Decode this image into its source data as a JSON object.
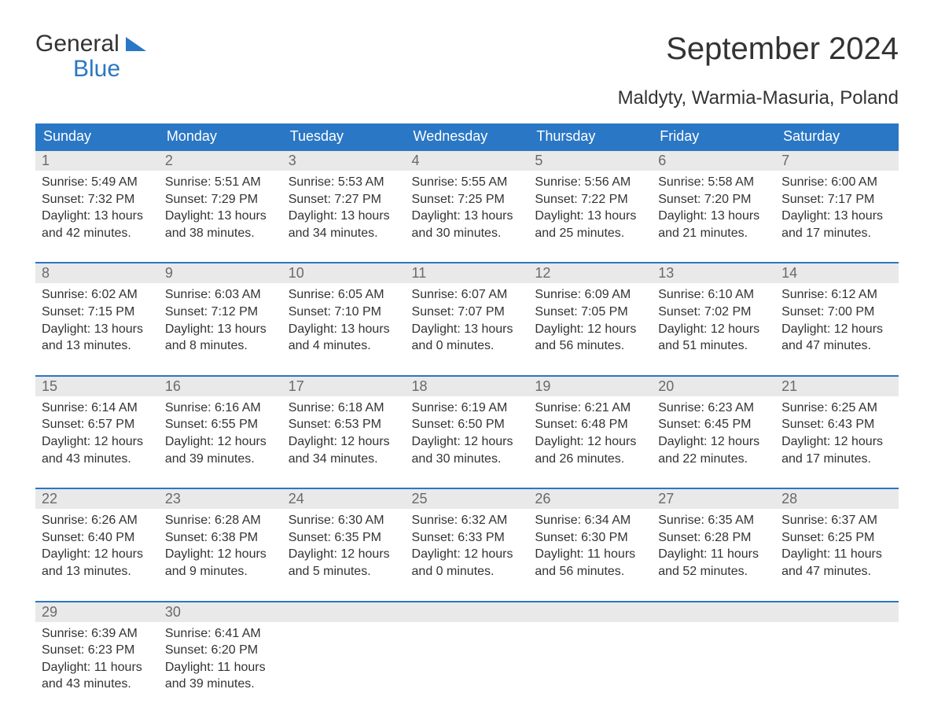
{
  "logo": {
    "line1": "General",
    "line2": "Blue"
  },
  "title": "September 2024",
  "location": "Maldyty, Warmia-Masuria, Poland",
  "colors": {
    "header_bg": "#2a77c5",
    "header_text": "#ffffff",
    "row_separator": "#2a77c5",
    "daynum_bg": "#e9e9e9",
    "daynum_text": "#6a6a6a",
    "body_text": "#333333",
    "page_bg": "#ffffff",
    "logo_accent": "#2a77c5"
  },
  "typography": {
    "title_fontsize": 40,
    "location_fontsize": 24,
    "header_fontsize": 18,
    "daynum_fontsize": 18,
    "body_fontsize": 16,
    "font_family": "Arial"
  },
  "columns": [
    "Sunday",
    "Monday",
    "Tuesday",
    "Wednesday",
    "Thursday",
    "Friday",
    "Saturday"
  ],
  "weeks": [
    [
      {
        "n": "1",
        "sr": "Sunrise: 5:49 AM",
        "ss": "Sunset: 7:32 PM",
        "d1": "Daylight: 13 hours",
        "d2": "and 42 minutes."
      },
      {
        "n": "2",
        "sr": "Sunrise: 5:51 AM",
        "ss": "Sunset: 7:29 PM",
        "d1": "Daylight: 13 hours",
        "d2": "and 38 minutes."
      },
      {
        "n": "3",
        "sr": "Sunrise: 5:53 AM",
        "ss": "Sunset: 7:27 PM",
        "d1": "Daylight: 13 hours",
        "d2": "and 34 minutes."
      },
      {
        "n": "4",
        "sr": "Sunrise: 5:55 AM",
        "ss": "Sunset: 7:25 PM",
        "d1": "Daylight: 13 hours",
        "d2": "and 30 minutes."
      },
      {
        "n": "5",
        "sr": "Sunrise: 5:56 AM",
        "ss": "Sunset: 7:22 PM",
        "d1": "Daylight: 13 hours",
        "d2": "and 25 minutes."
      },
      {
        "n": "6",
        "sr": "Sunrise: 5:58 AM",
        "ss": "Sunset: 7:20 PM",
        "d1": "Daylight: 13 hours",
        "d2": "and 21 minutes."
      },
      {
        "n": "7",
        "sr": "Sunrise: 6:00 AM",
        "ss": "Sunset: 7:17 PM",
        "d1": "Daylight: 13 hours",
        "d2": "and 17 minutes."
      }
    ],
    [
      {
        "n": "8",
        "sr": "Sunrise: 6:02 AM",
        "ss": "Sunset: 7:15 PM",
        "d1": "Daylight: 13 hours",
        "d2": "and 13 minutes."
      },
      {
        "n": "9",
        "sr": "Sunrise: 6:03 AM",
        "ss": "Sunset: 7:12 PM",
        "d1": "Daylight: 13 hours",
        "d2": "and 8 minutes."
      },
      {
        "n": "10",
        "sr": "Sunrise: 6:05 AM",
        "ss": "Sunset: 7:10 PM",
        "d1": "Daylight: 13 hours",
        "d2": "and 4 minutes."
      },
      {
        "n": "11",
        "sr": "Sunrise: 6:07 AM",
        "ss": "Sunset: 7:07 PM",
        "d1": "Daylight: 13 hours",
        "d2": "and 0 minutes."
      },
      {
        "n": "12",
        "sr": "Sunrise: 6:09 AM",
        "ss": "Sunset: 7:05 PM",
        "d1": "Daylight: 12 hours",
        "d2": "and 56 minutes."
      },
      {
        "n": "13",
        "sr": "Sunrise: 6:10 AM",
        "ss": "Sunset: 7:02 PM",
        "d1": "Daylight: 12 hours",
        "d2": "and 51 minutes."
      },
      {
        "n": "14",
        "sr": "Sunrise: 6:12 AM",
        "ss": "Sunset: 7:00 PM",
        "d1": "Daylight: 12 hours",
        "d2": "and 47 minutes."
      }
    ],
    [
      {
        "n": "15",
        "sr": "Sunrise: 6:14 AM",
        "ss": "Sunset: 6:57 PM",
        "d1": "Daylight: 12 hours",
        "d2": "and 43 minutes."
      },
      {
        "n": "16",
        "sr": "Sunrise: 6:16 AM",
        "ss": "Sunset: 6:55 PM",
        "d1": "Daylight: 12 hours",
        "d2": "and 39 minutes."
      },
      {
        "n": "17",
        "sr": "Sunrise: 6:18 AM",
        "ss": "Sunset: 6:53 PM",
        "d1": "Daylight: 12 hours",
        "d2": "and 34 minutes."
      },
      {
        "n": "18",
        "sr": "Sunrise: 6:19 AM",
        "ss": "Sunset: 6:50 PM",
        "d1": "Daylight: 12 hours",
        "d2": "and 30 minutes."
      },
      {
        "n": "19",
        "sr": "Sunrise: 6:21 AM",
        "ss": "Sunset: 6:48 PM",
        "d1": "Daylight: 12 hours",
        "d2": "and 26 minutes."
      },
      {
        "n": "20",
        "sr": "Sunrise: 6:23 AM",
        "ss": "Sunset: 6:45 PM",
        "d1": "Daylight: 12 hours",
        "d2": "and 22 minutes."
      },
      {
        "n": "21",
        "sr": "Sunrise: 6:25 AM",
        "ss": "Sunset: 6:43 PM",
        "d1": "Daylight: 12 hours",
        "d2": "and 17 minutes."
      }
    ],
    [
      {
        "n": "22",
        "sr": "Sunrise: 6:26 AM",
        "ss": "Sunset: 6:40 PM",
        "d1": "Daylight: 12 hours",
        "d2": "and 13 minutes."
      },
      {
        "n": "23",
        "sr": "Sunrise: 6:28 AM",
        "ss": "Sunset: 6:38 PM",
        "d1": "Daylight: 12 hours",
        "d2": "and 9 minutes."
      },
      {
        "n": "24",
        "sr": "Sunrise: 6:30 AM",
        "ss": "Sunset: 6:35 PM",
        "d1": "Daylight: 12 hours",
        "d2": "and 5 minutes."
      },
      {
        "n": "25",
        "sr": "Sunrise: 6:32 AM",
        "ss": "Sunset: 6:33 PM",
        "d1": "Daylight: 12 hours",
        "d2": "and 0 minutes."
      },
      {
        "n": "26",
        "sr": "Sunrise: 6:34 AM",
        "ss": "Sunset: 6:30 PM",
        "d1": "Daylight: 11 hours",
        "d2": "and 56 minutes."
      },
      {
        "n": "27",
        "sr": "Sunrise: 6:35 AM",
        "ss": "Sunset: 6:28 PM",
        "d1": "Daylight: 11 hours",
        "d2": "and 52 minutes."
      },
      {
        "n": "28",
        "sr": "Sunrise: 6:37 AM",
        "ss": "Sunset: 6:25 PM",
        "d1": "Daylight: 11 hours",
        "d2": "and 47 minutes."
      }
    ],
    [
      {
        "n": "29",
        "sr": "Sunrise: 6:39 AM",
        "ss": "Sunset: 6:23 PM",
        "d1": "Daylight: 11 hours",
        "d2": "and 43 minutes."
      },
      {
        "n": "30",
        "sr": "Sunrise: 6:41 AM",
        "ss": "Sunset: 6:20 PM",
        "d1": "Daylight: 11 hours",
        "d2": "and 39 minutes."
      },
      null,
      null,
      null,
      null,
      null
    ]
  ]
}
